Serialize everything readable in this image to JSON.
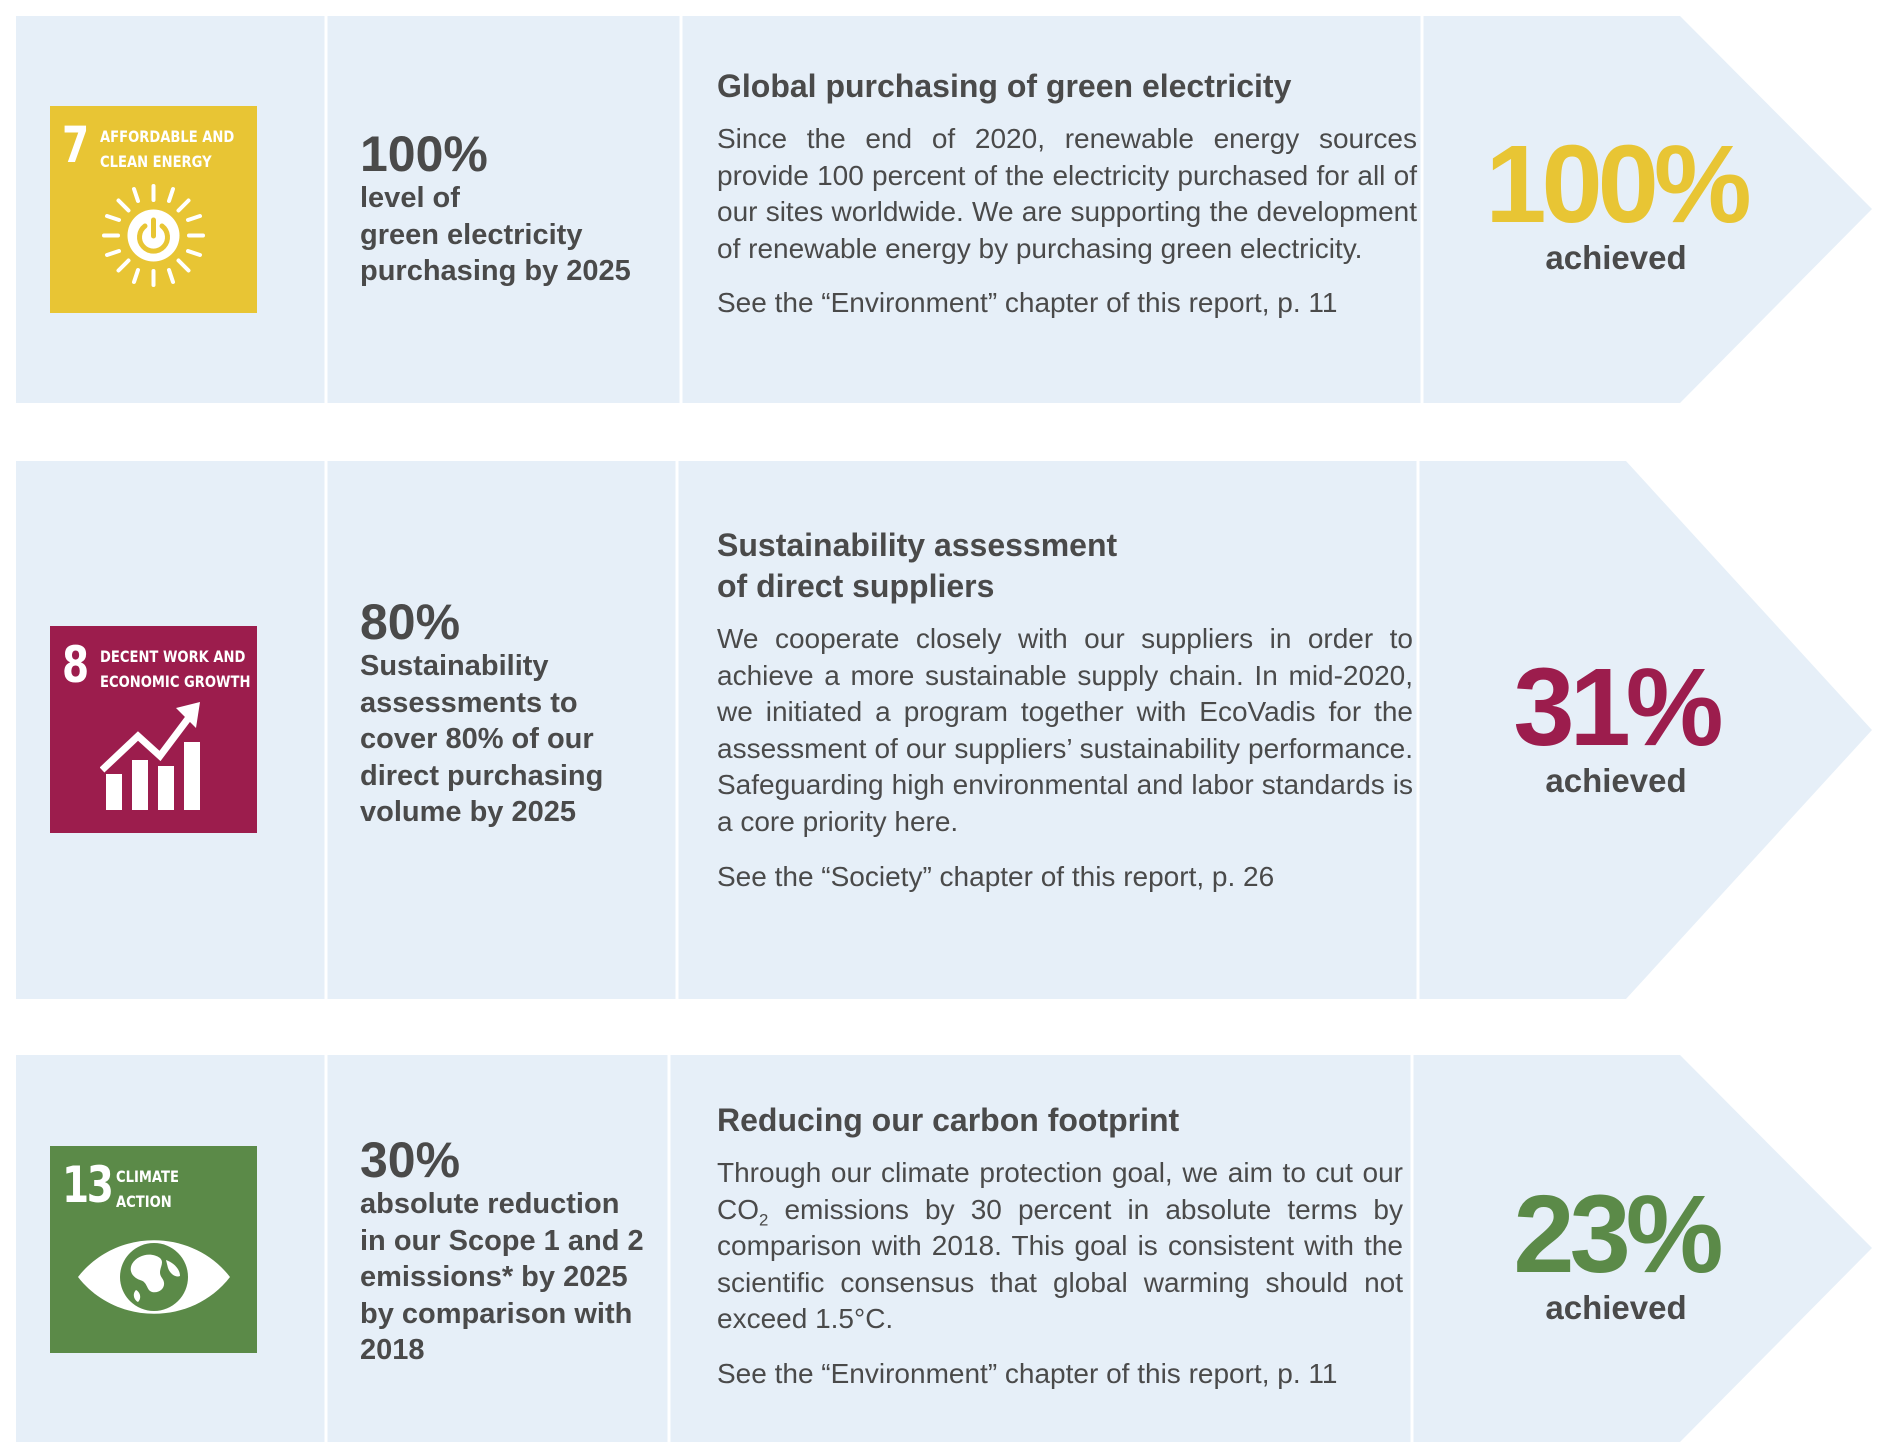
{
  "goals": [
    {
      "sdg": {
        "number": "7",
        "label_line1": "AFFORDABLE AND",
        "label_line2": "CLEAN ENERGY",
        "icon": "sun-power-icon",
        "color": "#e8c534"
      },
      "target": {
        "percent": "100%",
        "line1": "level of",
        "line2": "green electricity",
        "line3": "purchasing by 2025"
      },
      "title": "Global purchasing of green electricity",
      "body": "Since the end of 2020, renewable energy sources provide 100 percent of the electricity purchased for all of our sites worldwide. We are supporting the development of renewable energy by purchas­ing green electricity.",
      "reference": "See the “Environment” chapter of this report, p. 11",
      "result": {
        "value": "100%",
        "label": "achieved",
        "color": "#e8c534"
      }
    },
    {
      "sdg": {
        "number": "8",
        "label_line1": "DECENT WORK AND",
        "label_line2": "ECONOMIC GROWTH",
        "icon": "growth-chart-icon",
        "color": "#9c1d4d"
      },
      "target": {
        "percent": "80%",
        "line1": "Sustainability",
        "line2": "assessments to",
        "line3": "cover 80% of our",
        "line4": "direct purchasing",
        "line5": "volume by 2025"
      },
      "title_line1": "Sustainability assessment",
      "title_line2": "of direct suppliers",
      "body": "We cooperate closely with our suppliers in order to achieve a more sustainable supply chain. In mid-2020, we initiated a program together with EcoVadis for the assessment of our suppliers’ sus­tainability performance. Safeguarding high envi­ronmental and labor standards is a core priority here.",
      "reference": "See the “Society” chapter of this report, p. 26",
      "result": {
        "value": "31%",
        "label": "achieved",
        "color": "#9c1d4d"
      }
    },
    {
      "sdg": {
        "number": "13",
        "label_line1": "CLIMATE",
        "label_line2": "ACTION",
        "icon": "eye-globe-icon",
        "color": "#5b8a48"
      },
      "target": {
        "percent": "30%",
        "line1": "absolute reduction",
        "line2": "in our Scope 1 and 2",
        "line3": "emissions* by 2025",
        "line4": "by comparison with",
        "line5": "2018"
      },
      "title": "Reducing our carbon footprint",
      "body_part1": "Through our climate protection goal, we aim to cut our CO",
      "body_sub": "2",
      "body_part2": " emissions by 30 percent in absolute terms by comparison with 2018. This goal is con­sistent with the scientific consensus that global warming should not exceed 1.5°C.",
      "reference": "See the “Environment” chapter of this report, p. 11",
      "result": {
        "value": "23%",
        "label": "achieved",
        "color": "#5b8a48"
      }
    }
  ],
  "colors": {
    "panel": "#e6eff8",
    "divider": "#ffffff",
    "text": "#4a4a4a"
  }
}
